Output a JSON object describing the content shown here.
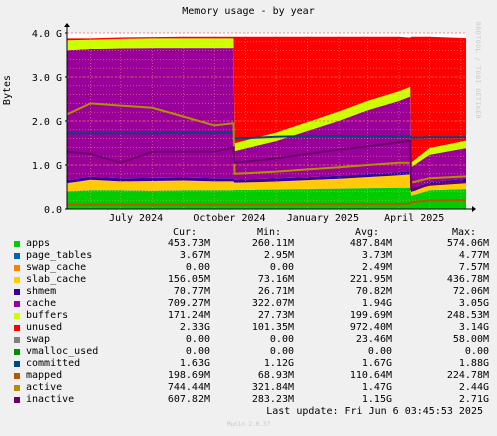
{
  "title": "Memory usage - by year",
  "y_axis_label": "Bytes",
  "brand_vertical": "RRDTOOL / TOBI OETIKER",
  "footer": "Munin 2.0.37",
  "last_update": "Last update: Fri Jun  6 03:45:53 2025",
  "legend_headers": {
    "cur": "Cur:",
    "min": "Min:",
    "avg": "Avg:",
    "max": "Max:"
  },
  "legend": [
    {
      "name": "apps",
      "color": "#00cc00",
      "cur": "453.73M",
      "min": "260.11M",
      "avg": "487.84M",
      "max": "574.06M"
    },
    {
      "name": "page_tables",
      "color": "#0066b3",
      "cur": "3.67M",
      "min": "2.95M",
      "avg": "3.73M",
      "max": "4.77M"
    },
    {
      "name": "swap_cache",
      "color": "#ff8000",
      "cur": "0.00",
      "min": "0.00",
      "avg": "2.49M",
      "max": "7.57M"
    },
    {
      "name": "slab_cache",
      "color": "#ffcc00",
      "cur": "156.05M",
      "min": "73.16M",
      "avg": "221.95M",
      "max": "436.78M"
    },
    {
      "name": "shmem",
      "color": "#330099",
      "cur": "70.77M",
      "min": "26.71M",
      "avg": "70.82M",
      "max": "72.06M"
    },
    {
      "name": "cache",
      "color": "#990099",
      "cur": "709.27M",
      "min": "322.07M",
      "avg": "1.94G",
      "max": "3.05G"
    },
    {
      "name": "buffers",
      "color": "#ccff00",
      "cur": "171.24M",
      "min": "27.73M",
      "avg": "199.69M",
      "max": "248.53M"
    },
    {
      "name": "unused",
      "color": "#ff0000",
      "cur": "2.33G",
      "min": "101.35M",
      "avg": "972.40M",
      "max": "3.14G"
    },
    {
      "name": "swap",
      "color": "#808080",
      "cur": "0.00",
      "min": "0.00",
      "avg": "23.46M",
      "max": "58.00M"
    },
    {
      "name": "vmalloc_used",
      "color": "#008f00",
      "cur": "0.00",
      "min": "0.00",
      "avg": "0.00",
      "max": "0.00"
    },
    {
      "name": "committed",
      "color": "#00487d",
      "cur": "1.63G",
      "min": "1.12G",
      "avg": "1.67G",
      "max": "1.88G"
    },
    {
      "name": "mapped",
      "color": "#b35a00",
      "cur": "198.69M",
      "min": "68.93M",
      "avg": "110.64M",
      "max": "224.78M"
    },
    {
      "name": "active",
      "color": "#b38f00",
      "cur": "744.44M",
      "min": "321.84M",
      "avg": "1.47G",
      "max": "2.44G"
    },
    {
      "name": "inactive",
      "color": "#6b006b",
      "cur": "607.82M",
      "min": "283.23M",
      "avg": "1.15G",
      "max": "2.71G"
    }
  ],
  "chart_data": {
    "type": "area",
    "title": "Memory usage - by year",
    "ylabel": "Bytes",
    "ylim": [
      0,
      4.0
    ],
    "y_unit": "G",
    "y_ticks": [
      "0.0",
      "1.0 G",
      "2.0 G",
      "3.0 G",
      "4.0 G"
    ],
    "y_tick_values": [
      0,
      1,
      2,
      3,
      4
    ],
    "x_ticks": [
      "July 2024",
      "October 2024",
      "January 2025",
      "April 2025"
    ],
    "x_tick_dates": [
      "2024-07-01",
      "2024-10-01",
      "2025-01-01",
      "2025-04-01"
    ],
    "x_range": [
      "2024-05-09",
      "2025-06-06"
    ],
    "grid": true,
    "stack_order": [
      "apps",
      "page_tables",
      "swap_cache",
      "slab_cache",
      "shmem",
      "cache",
      "buffers",
      "unused",
      "swap",
      "vmalloc_used"
    ],
    "lines_order": [
      "committed",
      "mapped",
      "active",
      "inactive"
    ],
    "x": [
      "2024-05-09",
      "2024-06-01",
      "2024-07-01",
      "2024-08-01",
      "2024-09-01",
      "2024-10-01",
      "2024-10-20",
      "2024-10-21",
      "2024-12-01",
      "2025-01-01",
      "2025-02-01",
      "2025-03-01",
      "2025-04-01",
      "2025-04-12",
      "2025-04-13",
      "2025-05-01",
      "2025-06-06"
    ],
    "series": [
      {
        "name": "apps",
        "values": [
          0.4,
          0.42,
          0.42,
          0.41,
          0.42,
          0.42,
          0.42,
          0.43,
          0.44,
          0.45,
          0.46,
          0.47,
          0.48,
          0.48,
          0.3,
          0.42,
          0.45
        ]
      },
      {
        "name": "page_tables",
        "values": [
          0.004,
          0.004,
          0.004,
          0.004,
          0.004,
          0.004,
          0.004,
          0.004,
          0.004,
          0.004,
          0.004,
          0.004,
          0.004,
          0.004,
          0.003,
          0.004,
          0.004
        ]
      },
      {
        "name": "swap_cache",
        "values": [
          0.003,
          0.003,
          0.003,
          0.003,
          0.003,
          0.003,
          0.003,
          0.002,
          0.002,
          0.002,
          0.002,
          0.002,
          0.002,
          0.002,
          0.0,
          0.0,
          0.0
        ]
      },
      {
        "name": "slab_cache",
        "values": [
          0.18,
          0.24,
          0.2,
          0.22,
          0.22,
          0.2,
          0.2,
          0.16,
          0.18,
          0.2,
          0.22,
          0.25,
          0.28,
          0.3,
          0.08,
          0.12,
          0.16
        ]
      },
      {
        "name": "shmem",
        "values": [
          0.07,
          0.07,
          0.07,
          0.07,
          0.07,
          0.07,
          0.07,
          0.07,
          0.07,
          0.07,
          0.07,
          0.07,
          0.07,
          0.07,
          0.07,
          0.07,
          0.07
        ]
      },
      {
        "name": "cache",
        "values": [
          2.95,
          2.9,
          2.95,
          2.95,
          2.94,
          2.96,
          2.96,
          0.65,
          0.85,
          1.05,
          1.25,
          1.45,
          1.62,
          1.7,
          0.5,
          0.62,
          0.7
        ]
      },
      {
        "name": "buffers",
        "values": [
          0.23,
          0.21,
          0.22,
          0.22,
          0.22,
          0.22,
          0.22,
          0.18,
          0.19,
          0.2,
          0.21,
          0.21,
          0.22,
          0.22,
          0.1,
          0.15,
          0.17
        ]
      },
      {
        "name": "unused",
        "values": [
          0.04,
          0.03,
          0.03,
          0.03,
          0.04,
          0.04,
          0.04,
          2.42,
          2.18,
          1.94,
          1.7,
          1.46,
          1.24,
          1.12,
          2.86,
          2.53,
          2.33
        ]
      },
      {
        "name": "swap",
        "values": [
          0.0,
          0.0,
          0.0,
          0.0,
          0.0,
          0.0,
          0.0,
          0.0,
          0.0,
          0.0,
          0.0,
          0.0,
          0.0,
          0.0,
          0.0,
          0.0,
          0.0
        ]
      },
      {
        "name": "vmalloc_used",
        "values": [
          0.0,
          0.0,
          0.0,
          0.0,
          0.0,
          0.0,
          0.0,
          0.0,
          0.0,
          0.0,
          0.0,
          0.0,
          0.0,
          0.0,
          0.0,
          0.0,
          0.0
        ]
      },
      {
        "name": "committed",
        "values": [
          1.72,
          1.72,
          1.72,
          1.72,
          1.73,
          1.72,
          1.74,
          1.6,
          1.64,
          1.66,
          1.66,
          1.65,
          1.65,
          1.65,
          1.62,
          1.63,
          1.63
        ]
      },
      {
        "name": "mapped",
        "values": [
          0.1,
          0.1,
          0.1,
          0.1,
          0.1,
          0.1,
          0.1,
          0.1,
          0.1,
          0.11,
          0.11,
          0.11,
          0.11,
          0.12,
          0.16,
          0.19,
          0.2
        ]
      },
      {
        "name": "active",
        "values": [
          2.15,
          2.4,
          2.35,
          2.3,
          2.1,
          1.9,
          1.95,
          0.8,
          0.85,
          0.9,
          0.95,
          1.0,
          1.05,
          1.05,
          0.6,
          0.7,
          0.74
        ]
      },
      {
        "name": "inactive",
        "values": [
          1.3,
          1.25,
          1.05,
          1.3,
          1.3,
          1.3,
          1.4,
          1.05,
          1.15,
          1.25,
          1.35,
          1.42,
          1.52,
          1.55,
          0.45,
          0.55,
          0.61
        ]
      }
    ]
  }
}
